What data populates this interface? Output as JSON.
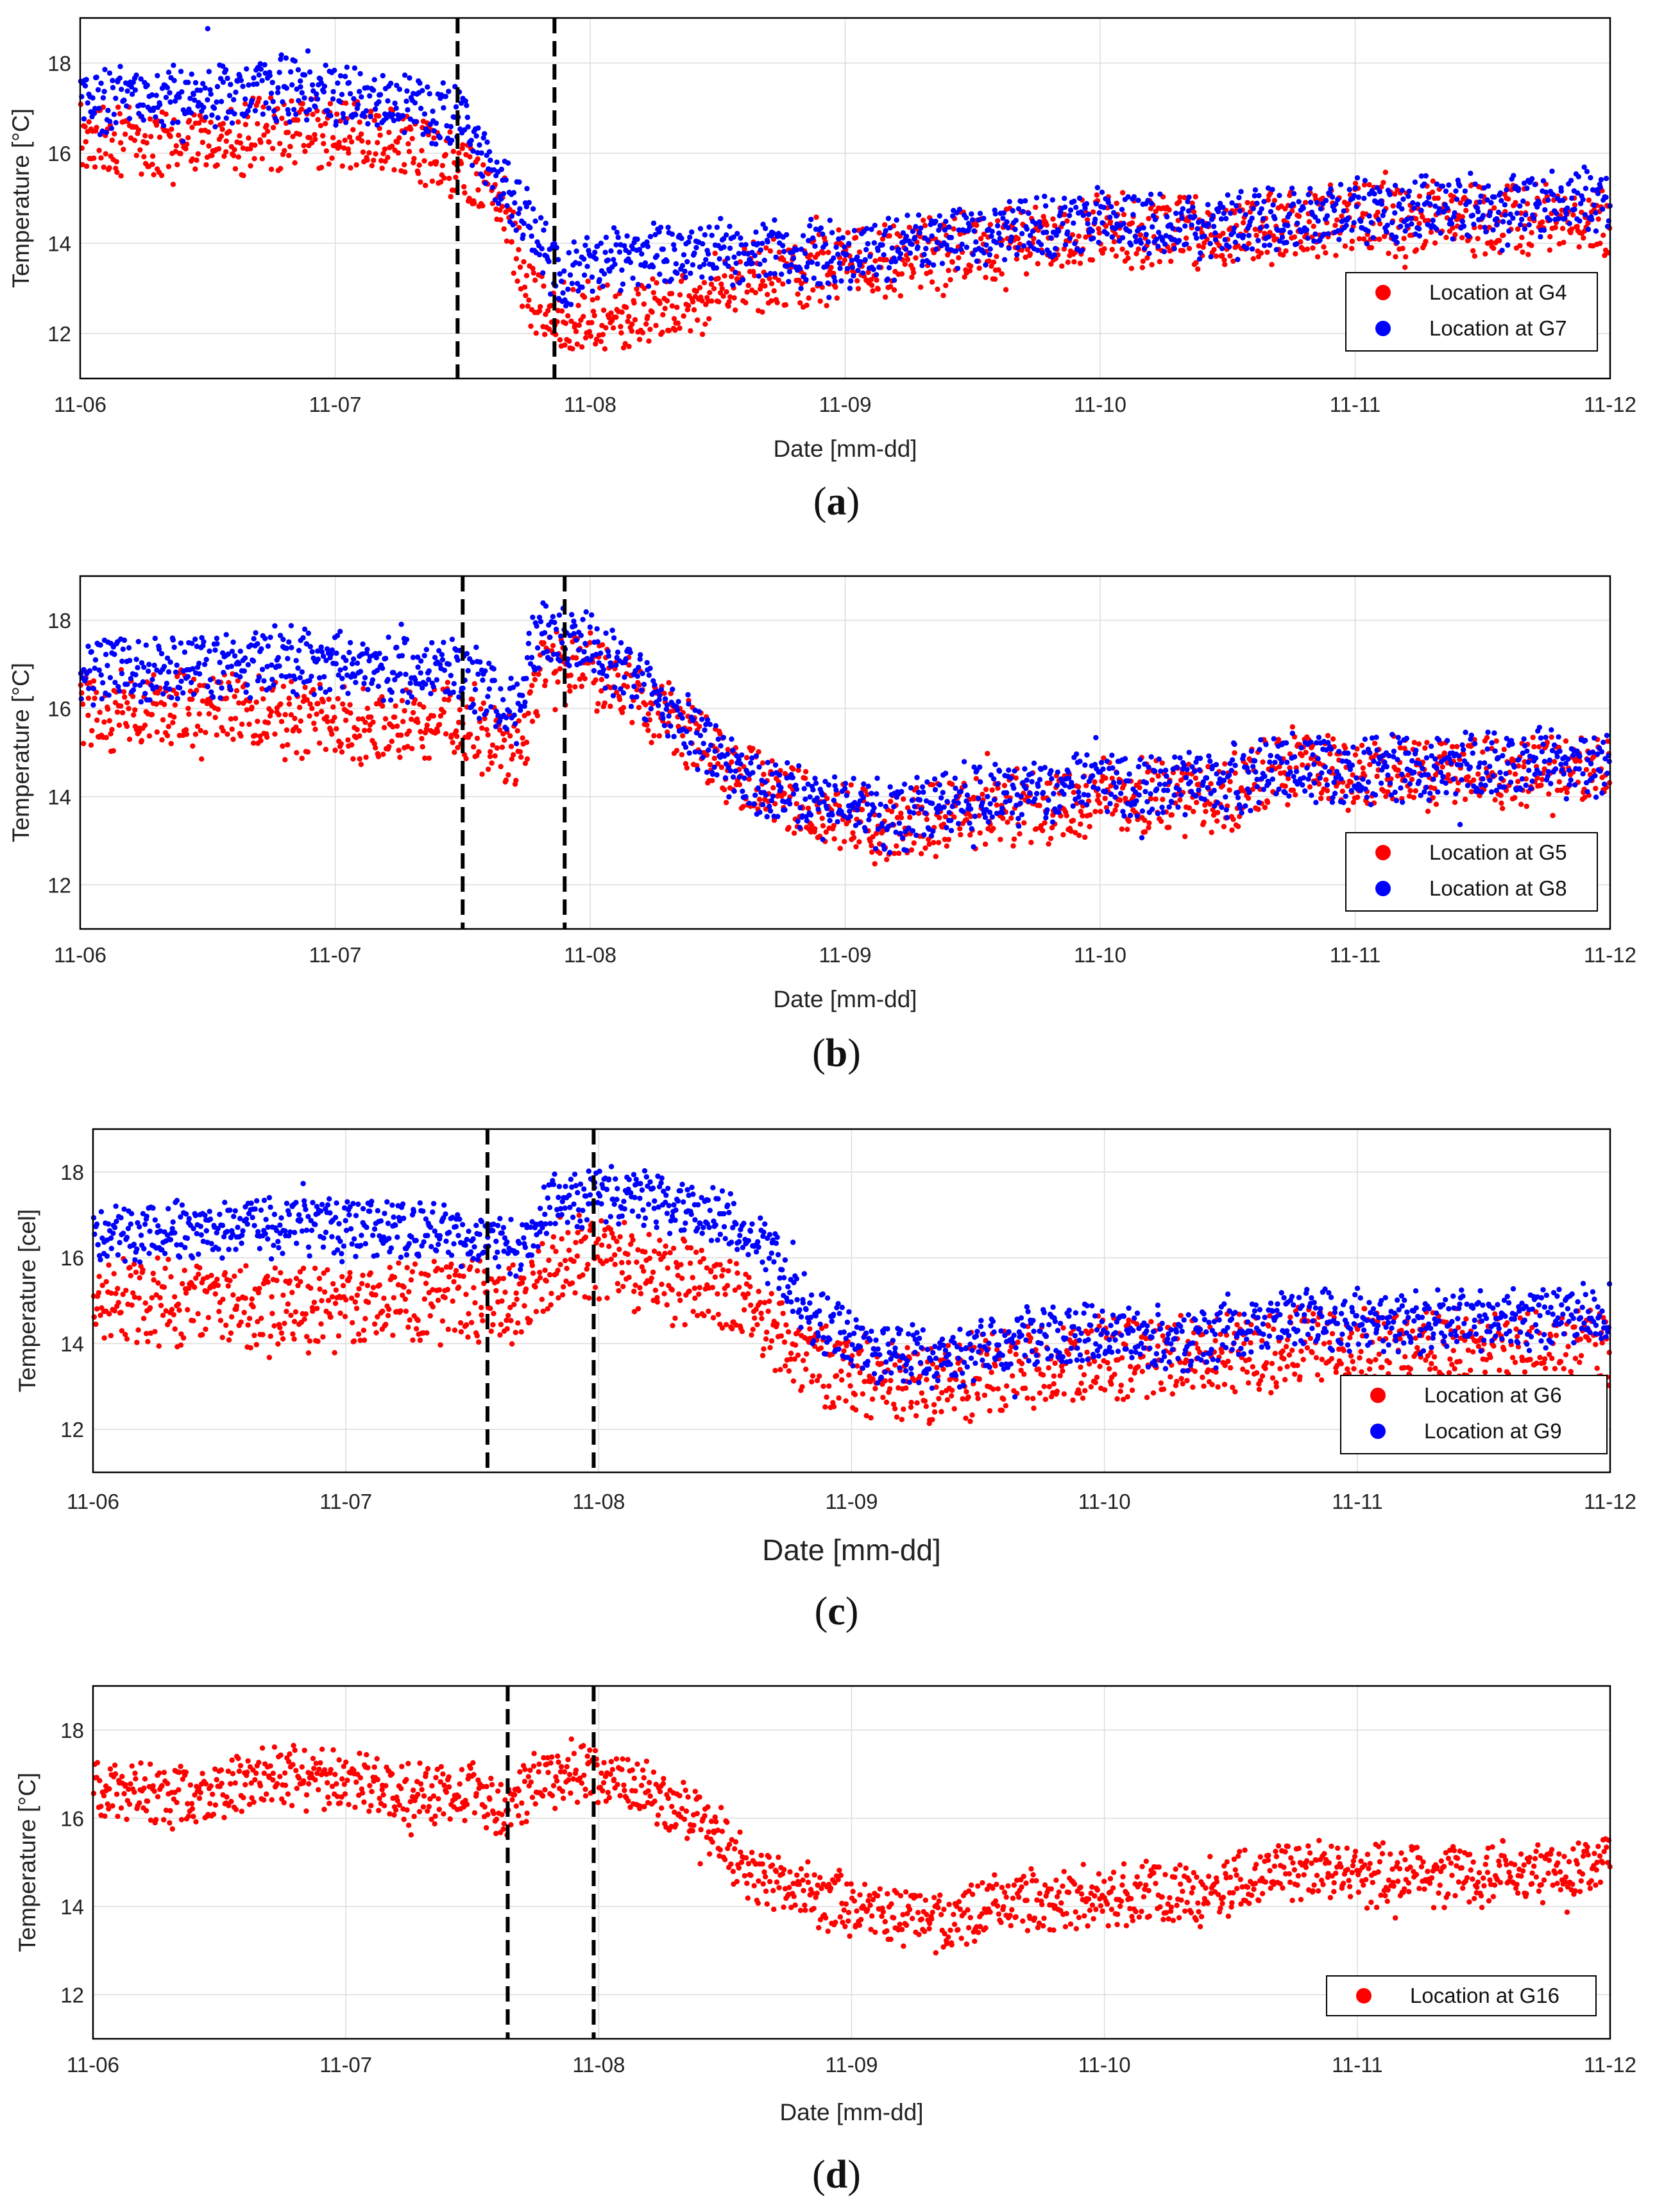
{
  "figure": {
    "colors": {
      "red": "#ff0000",
      "blue": "#0000ff",
      "grid": "#dcdcdc",
      "frame": "#000000"
    }
  },
  "chart_data": [
    {
      "type": "scatter",
      "panel": "a",
      "caption": {
        "open": "(",
        "letter": "a",
        "close": ")"
      },
      "xlabel": "Date [mm-dd]",
      "ylabel": "Temperature [°C]",
      "x_ticks": [
        "11-06",
        "11-07",
        "11-08",
        "11-09",
        "11-10",
        "11-11",
        "11-12"
      ],
      "x_range_days": [
        0,
        6
      ],
      "y_ticks": [
        "12",
        "14",
        "16",
        "18"
      ],
      "y_tick_values": [
        12,
        14,
        16,
        18
      ],
      "ylim": [
        11,
        19
      ],
      "vlines_days": [
        1.48,
        1.86
      ],
      "legend": "bottom-right",
      "series": [
        {
          "name": "Location at G4",
          "color": "#ff0000",
          "noise": 0.35,
          "mid": 0.5,
          "trend": [
            [
              0,
              16.4
            ],
            [
              0.35,
              16.1
            ],
            [
              0.8,
              16.5
            ],
            [
              1.3,
              16.2
            ],
            [
              1.5,
              15.6
            ],
            [
              1.65,
              15.0
            ],
            [
              1.75,
              13.0
            ],
            [
              1.85,
              12.4
            ],
            [
              2.0,
              12.3
            ],
            [
              2.4,
              12.7
            ],
            [
              2.6,
              13.2
            ],
            [
              3.0,
              13.5
            ],
            [
              3.5,
              13.9
            ],
            [
              4.0,
              14.3
            ],
            [
              4.5,
              14.2
            ],
            [
              5.0,
              14.6
            ],
            [
              5.5,
              14.5
            ],
            [
              6,
              14.5
            ]
          ]
        },
        {
          "name": "Location at G7",
          "color": "#0000ff",
          "noise": 0.3,
          "mid": 0.55,
          "trend": [
            [
              0,
              17.2
            ],
            [
              0.8,
              17.5
            ],
            [
              1.4,
              17.0
            ],
            [
              1.5,
              16.8
            ],
            [
              1.6,
              15.8
            ],
            [
              1.7,
              15.0
            ],
            [
              1.8,
              14.2
            ],
            [
              1.88,
              13.3
            ],
            [
              2.1,
              13.7
            ],
            [
              2.5,
              13.9
            ],
            [
              3.0,
              13.8
            ],
            [
              3.5,
              14.2
            ],
            [
              4.0,
              14.6
            ],
            [
              4.5,
              14.4
            ],
            [
              5.0,
              14.8
            ],
            [
              5.5,
              14.9
            ],
            [
              6,
              15.0
            ]
          ]
        }
      ]
    },
    {
      "type": "scatter",
      "panel": "b",
      "caption": {
        "open": "(",
        "letter": "b",
        "close": ")"
      },
      "xlabel": "Date [mm-dd]",
      "ylabel": "Temperature [°C]",
      "x_ticks": [
        "11-06",
        "11-07",
        "11-08",
        "11-09",
        "11-10",
        "11-11",
        "11-12"
      ],
      "x_range_days": [
        0,
        6
      ],
      "y_ticks": [
        "12",
        "14",
        "16",
        "18"
      ],
      "y_tick_values": [
        12,
        14,
        16,
        18
      ],
      "ylim": [
        11,
        19
      ],
      "vlines_days": [
        1.5,
        1.9
      ],
      "legend": "bottom-right",
      "series": [
        {
          "name": "Location at G5",
          "color": "#ff0000",
          "noise": 0.38,
          "mid": 0.55,
          "trend": [
            [
              0,
              16.0
            ],
            [
              0.5,
              16.1
            ],
            [
              0.8,
              15.9
            ],
            [
              1.2,
              15.6
            ],
            [
              1.5,
              15.8
            ],
            [
              1.7,
              15.0
            ],
            [
              1.75,
              15.4
            ],
            [
              1.8,
              17.0
            ],
            [
              2.0,
              17.0
            ],
            [
              2.3,
              15.8
            ],
            [
              2.6,
              14.6
            ],
            [
              2.9,
              13.7
            ],
            [
              3.2,
              13.4
            ],
            [
              3.5,
              13.7
            ],
            [
              4.0,
              14.0
            ],
            [
              4.5,
              14.1
            ],
            [
              4.7,
              14.8
            ],
            [
              5.0,
              14.6
            ],
            [
              6,
              14.6
            ]
          ]
        },
        {
          "name": "Location at G8",
          "color": "#0000ff",
          "noise": 0.33,
          "mid": 0.65,
          "trend": [
            [
              0,
              17.0
            ],
            [
              0.8,
              17.3
            ],
            [
              1.2,
              17.1
            ],
            [
              1.5,
              17.0
            ],
            [
              1.7,
              16.3
            ],
            [
              1.8,
              17.9
            ],
            [
              2.0,
              17.6
            ],
            [
              2.2,
              16.8
            ],
            [
              2.4,
              15.6
            ],
            [
              2.6,
              14.6
            ],
            [
              2.9,
              14.0
            ],
            [
              3.2,
              13.7
            ],
            [
              3.5,
              14.2
            ],
            [
              4.0,
              14.5
            ],
            [
              4.5,
              14.4
            ],
            [
              4.7,
              14.9
            ],
            [
              5.0,
              14.8
            ],
            [
              6,
              15.0
            ]
          ]
        }
      ]
    },
    {
      "type": "scatter",
      "panel": "c",
      "caption": {
        "open": "(",
        "letter": "c",
        "close": ")"
      },
      "xlabel": "Date [mm-dd]",
      "ylabel": "Temperature [cel]",
      "x_ticks": [
        "11-06",
        "11-07",
        "11-08",
        "11-09",
        "11-10",
        "11-11",
        "11-12"
      ],
      "x_range_days": [
        0,
        6
      ],
      "y_ticks": [
        "12",
        "14",
        "16",
        "18"
      ],
      "y_tick_values": [
        12,
        14,
        16,
        18
      ],
      "ylim": [
        11,
        19
      ],
      "vlines_days": [
        1.56,
        1.98
      ],
      "legend": "bottom-right",
      "series": [
        {
          "name": "Location at G6",
          "color": "#ff0000",
          "noise": 0.45,
          "mid": 0.6,
          "trend": [
            [
              0,
              15.2
            ],
            [
              0.5,
              15.1
            ],
            [
              0.9,
              15.0
            ],
            [
              1.3,
              15.1
            ],
            [
              1.55,
              15.3
            ],
            [
              1.7,
              15.0
            ],
            [
              1.85,
              16.3
            ],
            [
              2.1,
              16.0
            ],
            [
              2.5,
              15.3
            ],
            [
              2.8,
              14.0
            ],
            [
              3.0,
              13.4
            ],
            [
              3.3,
              13.2
            ],
            [
              3.6,
              13.6
            ],
            [
              4.0,
              13.8
            ],
            [
              4.5,
              14.0
            ],
            [
              5.0,
              14.1
            ],
            [
              6,
              14.0
            ]
          ]
        },
        {
          "name": "Location at G9",
          "color": "#0000ff",
          "noise": 0.3,
          "mid": 0.55,
          "trend": [
            [
              0,
              16.6
            ],
            [
              0.8,
              16.8
            ],
            [
              1.5,
              16.6
            ],
            [
              1.7,
              16.3
            ],
            [
              1.8,
              17.3
            ],
            [
              2.1,
              17.5
            ],
            [
              2.5,
              17.0
            ],
            [
              2.7,
              16.0
            ],
            [
              2.85,
              14.6
            ],
            [
              3.1,
              13.9
            ],
            [
              3.4,
              13.7
            ],
            [
              3.7,
              14.2
            ],
            [
              4.0,
              14.3
            ],
            [
              4.3,
              14.0
            ],
            [
              4.7,
              14.6
            ],
            [
              5.0,
              14.6
            ],
            [
              6,
              14.7
            ]
          ]
        }
      ]
    },
    {
      "type": "scatter",
      "panel": "d",
      "caption": {
        "open": "(",
        "letter": "d",
        "close": ")"
      },
      "xlabel": "Date [mm-dd]",
      "ylabel": "Temperature [°C]",
      "x_ticks": [
        "11-06",
        "11-07",
        "11-08",
        "11-09",
        "11-10",
        "11-11",
        "11-12"
      ],
      "x_range_days": [
        0,
        6
      ],
      "y_ticks": [
        "12",
        "14",
        "16",
        "18"
      ],
      "y_tick_values": [
        12,
        14,
        16,
        18
      ],
      "ylim": [
        11,
        19
      ],
      "vlines_days": [
        1.64,
        1.98
      ],
      "legend": "bottom-right",
      "series": [
        {
          "name": "Location at G16",
          "color": "#ff0000",
          "noise": 0.3,
          "mid": 0.5,
          "trend": [
            [
              0,
              16.6
            ],
            [
              0.4,
              16.5
            ],
            [
              0.8,
              17.0
            ],
            [
              1.2,
              16.6
            ],
            [
              1.5,
              16.5
            ],
            [
              1.65,
              16.3
            ],
            [
              1.8,
              17.0
            ],
            [
              2.1,
              16.8
            ],
            [
              2.4,
              16.0
            ],
            [
              2.6,
              14.8
            ],
            [
              2.8,
              14.3
            ],
            [
              3.0,
              14.0
            ],
            [
              3.3,
              13.6
            ],
            [
              3.6,
              14.0
            ],
            [
              4.0,
              14.3
            ],
            [
              4.4,
              14.3
            ],
            [
              4.7,
              14.9
            ],
            [
              5.0,
              14.7
            ],
            [
              5.5,
              14.7
            ],
            [
              6,
              15.0
            ]
          ]
        }
      ]
    }
  ]
}
